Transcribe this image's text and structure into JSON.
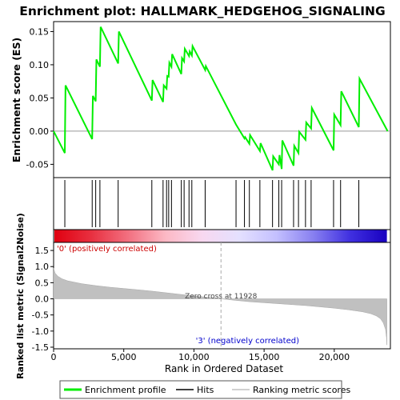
{
  "chart_data": {
    "type": "line",
    "title": "Enrichment plot: HALLMARK_HEDGEHOG_SIGNALING",
    "xlabel": "Rank in Ordered Dataset",
    "xlim": [
      0,
      24000
    ],
    "x_ticks": [
      0,
      5000,
      10000,
      15000,
      20000
    ],
    "x_tick_labels": [
      "0",
      "5,000",
      "10,000",
      "15,000",
      "20,000"
    ],
    "es_panel": {
      "ylabel": "Enrichment score (ES)",
      "ylim": [
        -0.07,
        0.165
      ],
      "y_ticks": [
        -0.05,
        0.0,
        0.05,
        0.1,
        0.15
      ],
      "y_tick_labels": [
        "-0.05",
        "0.00",
        "0.05",
        "0.10",
        "0.15"
      ],
      "series_color": "#00ee00",
      "points": [
        [
          0,
          0.0
        ],
        [
          800,
          -0.033
        ],
        [
          850,
          0.069
        ],
        [
          2750,
          -0.012
        ],
        [
          2800,
          0.053
        ],
        [
          3000,
          0.045
        ],
        [
          3050,
          0.108
        ],
        [
          3300,
          0.097
        ],
        [
          3350,
          0.157
        ],
        [
          4600,
          0.102
        ],
        [
          4650,
          0.15
        ],
        [
          7000,
          0.046
        ],
        [
          7050,
          0.077
        ],
        [
          7800,
          0.044
        ],
        [
          7850,
          0.069
        ],
        [
          8050,
          0.064
        ],
        [
          8100,
          0.083
        ],
        [
          8200,
          0.082
        ],
        [
          8250,
          0.103
        ],
        [
          8400,
          0.097
        ],
        [
          8450,
          0.116
        ],
        [
          9100,
          0.086
        ],
        [
          9150,
          0.11
        ],
        [
          9300,
          0.105
        ],
        [
          9350,
          0.124
        ],
        [
          9650,
          0.113
        ],
        [
          9700,
          0.12
        ],
        [
          9850,
          0.114
        ],
        [
          9900,
          0.128
        ],
        [
          10800,
          0.092
        ],
        [
          10850,
          0.098
        ],
        [
          13000,
          0.01
        ],
        [
          13600,
          -0.011
        ],
        [
          13650,
          -0.009
        ],
        [
          13950,
          -0.019
        ],
        [
          14000,
          -0.006
        ],
        [
          14700,
          -0.03
        ],
        [
          14750,
          -0.018
        ],
        [
          15600,
          -0.059
        ],
        [
          15650,
          -0.038
        ],
        [
          16050,
          -0.05
        ],
        [
          16100,
          -0.036
        ],
        [
          16250,
          -0.057
        ],
        [
          16300,
          -0.014
        ],
        [
          17100,
          -0.052
        ],
        [
          17150,
          -0.022
        ],
        [
          17450,
          -0.033
        ],
        [
          17500,
          -0.001
        ],
        [
          17950,
          -0.013
        ],
        [
          18000,
          0.013
        ],
        [
          18350,
          0.004
        ],
        [
          18400,
          0.035
        ],
        [
          19950,
          -0.029
        ],
        [
          20000,
          0.025
        ],
        [
          20450,
          0.009
        ],
        [
          20500,
          0.06
        ],
        [
          21750,
          0.006
        ],
        [
          21800,
          0.079
        ],
        [
          23800,
          0.0
        ]
      ]
    },
    "hits": [
      800,
      2750,
      3000,
      3300,
      4600,
      7000,
      7800,
      8050,
      8200,
      8400,
      9100,
      9300,
      9650,
      9850,
      10800,
      13000,
      13600,
      13950,
      14700,
      15600,
      16050,
      16250,
      17100,
      17450,
      17950,
      18350,
      19950,
      20450,
      21750
    ],
    "heatmap_gradient": [
      "#e00010",
      "#e83040",
      "#f27080",
      "#fcb8c4",
      "#f8d8f0",
      "#e4e0ff",
      "#c4c0ff",
      "#8880f0",
      "#4030e0",
      "#1800c0"
    ],
    "ranked_panel": {
      "ylabel": "Ranked list metric (Signal2Noise)",
      "ylim": [
        -1.55,
        1.75
      ],
      "y_ticks": [
        -1.5,
        -1.0,
        -0.5,
        0.0,
        0.5,
        1.0,
        1.5
      ],
      "y_tick_labels": [
        "-1.5",
        "-1.0",
        "-0.5",
        "0.0",
        "0.5",
        "1.0",
        "1.5"
      ],
      "curve": [
        [
          0,
          0.95
        ],
        [
          100,
          0.8
        ],
        [
          300,
          0.7
        ],
        [
          600,
          0.62
        ],
        [
          1000,
          0.56
        ],
        [
          2000,
          0.47
        ],
        [
          3000,
          0.41
        ],
        [
          4000,
          0.36
        ],
        [
          5000,
          0.32
        ],
        [
          6000,
          0.28
        ],
        [
          7000,
          0.24
        ],
        [
          8000,
          0.19
        ],
        [
          9000,
          0.14
        ],
        [
          10000,
          0.09
        ],
        [
          11000,
          0.045
        ],
        [
          11928,
          0.0
        ],
        [
          13000,
          -0.05
        ],
        [
          14000,
          -0.09
        ],
        [
          15000,
          -0.12
        ],
        [
          16000,
          -0.15
        ],
        [
          17000,
          -0.18
        ],
        [
          18000,
          -0.21
        ],
        [
          19000,
          -0.25
        ],
        [
          20000,
          -0.29
        ],
        [
          21000,
          -0.34
        ],
        [
          22000,
          -0.4
        ],
        [
          22600,
          -0.46
        ],
        [
          23000,
          -0.53
        ],
        [
          23300,
          -0.62
        ],
        [
          23500,
          -0.75
        ],
        [
          23650,
          -0.95
        ],
        [
          23720,
          -1.2
        ],
        [
          23750,
          -1.43
        ]
      ],
      "zero_cross_label": "Zero cross at 11928",
      "zero_cross": 11928,
      "pos_label": "'0' (positively correlated)",
      "neg_label": "'3' (negatively correlated)"
    },
    "legend": {
      "placement": "bottom",
      "items": [
        {
          "label": "Enrichment profile",
          "color": "#00ee00",
          "kind": "line"
        },
        {
          "label": "Hits",
          "color": "#000000",
          "kind": "line"
        },
        {
          "label": "Ranking metric scores",
          "color": "#c0c0c0",
          "kind": "line"
        }
      ]
    }
  }
}
